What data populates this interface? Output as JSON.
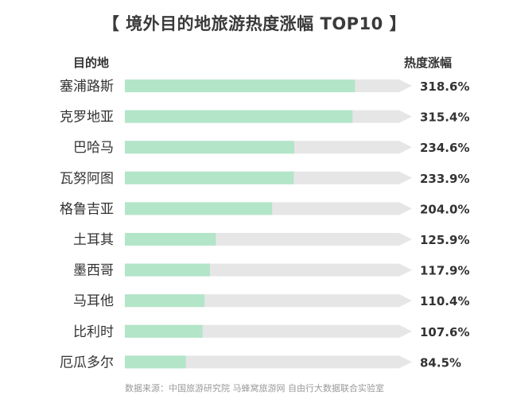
{
  "title": "【 境外目的地旅游热度涨幅 TOP10 】",
  "header_left": "目的地",
  "header_right": "热度涨幅",
  "source": "数据来源：中国旅游研究院 马蜂窝旅游网 自由行大数据联合实验室",
  "colors": {
    "bar": "#b3e5c9",
    "track": "#e6e6e6",
    "text": "#333333"
  },
  "chart_data": {
    "type": "bar",
    "orientation": "horizontal",
    "categories": [
      "塞浦路斯",
      "克罗地亚",
      "巴哈马",
      "瓦努阿图",
      "格鲁吉亚",
      "土耳其",
      "墨西哥",
      "马耳他",
      "比利时",
      "厄瓜多尔"
    ],
    "values": [
      318.6,
      315.4,
      234.6,
      233.9,
      204.0,
      125.9,
      117.9,
      110.4,
      107.6,
      84.5
    ],
    "value_labels": [
      "318.6%",
      "315.4%",
      "234.6%",
      "233.9%",
      "204.0%",
      "125.9%",
      "117.9%",
      "110.4%",
      "107.6%",
      "84.5%"
    ],
    "unit": "%",
    "xlim": [
      0,
      380
    ]
  }
}
